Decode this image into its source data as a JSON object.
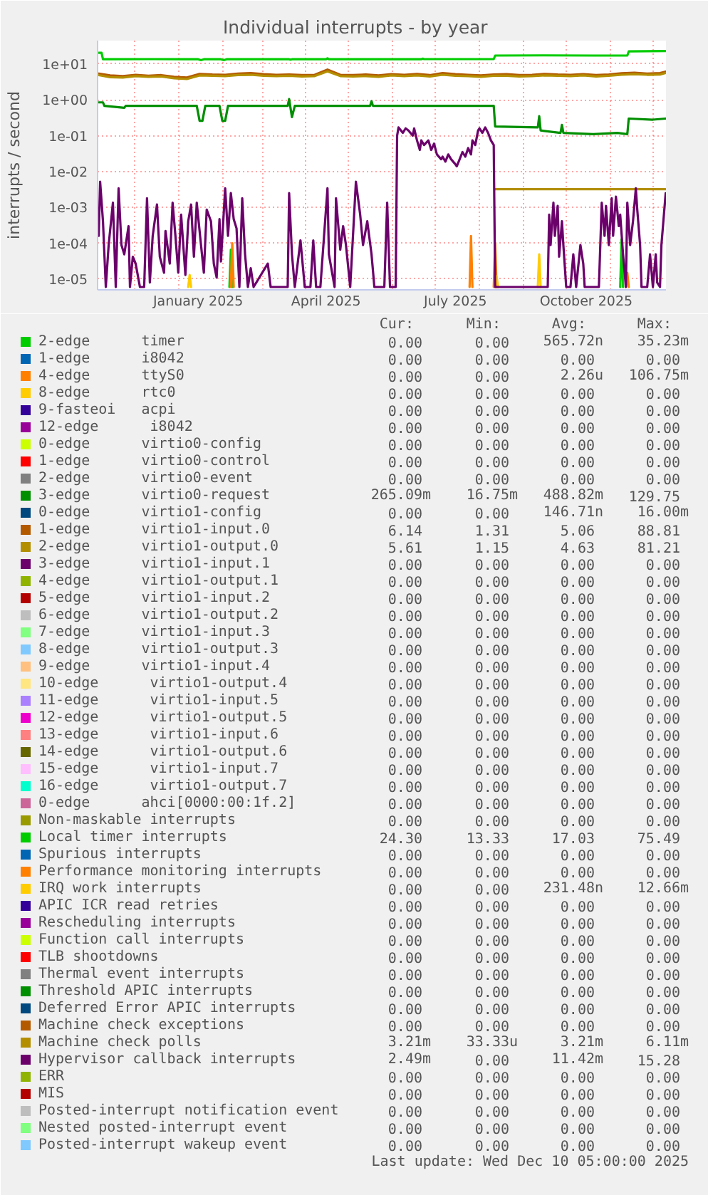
{
  "chart_data": {
    "type": "line",
    "title": "Individual interrupts - by year",
    "ylabel": "interrupts / second",
    "log": "y",
    "grid": true,
    "legend": "bottom",
    "xlim": [
      "2024-11-05T05:00",
      "2025-12-10T05:00"
    ],
    "xticks": [
      {
        "value": "2024-12-01",
        "label": null
      },
      {
        "value": "2025-01-01",
        "label": null
      },
      {
        "value": "2025-01-15",
        "label": "January 2025"
      },
      {
        "value": "2025-02-01",
        "label": null
      },
      {
        "value": "2025-03-01",
        "label": null
      },
      {
        "value": "2025-04-01",
        "label": null
      },
      {
        "value": "2025-04-15",
        "label": "April 2025"
      },
      {
        "value": "2025-05-01",
        "label": null
      },
      {
        "value": "2025-06-01",
        "label": null
      },
      {
        "value": "2025-07-01",
        "label": null
      },
      {
        "value": "2025-07-15",
        "label": "July 2025"
      },
      {
        "value": "2025-08-01",
        "label": null
      },
      {
        "value": "2025-09-01",
        "label": null
      },
      {
        "value": "2025-10-01",
        "label": null
      },
      {
        "value": "2025-10-15",
        "label": "October 2025"
      },
      {
        "value": "2025-11-01",
        "label": null
      },
      {
        "value": "2025-12-01",
        "label": null
      }
    ],
    "ylim": [
      5e-06,
      45
    ],
    "yticks": [
      {
        "value": 1e-05,
        "label": "1e-05"
      },
      {
        "value": 0.0001,
        "label": "1e-04"
      },
      {
        "value": 0.001,
        "label": "1e-03"
      },
      {
        "value": 0.01,
        "label": "1e-02"
      },
      {
        "value": 0.1,
        "label": "1e-01"
      },
      {
        "value": 1,
        "label": "1e+00"
      },
      {
        "value": 10,
        "label": "1e+01"
      }
    ],
    "series": [
      {
        "name": "2-edge      timer",
        "color": "#00cc00",
        "x": [
          "2025-02-06",
          "2025-02-07",
          "2025-02-08",
          "2025-02-09",
          "2025-11-08",
          "2025-11-09",
          "2025-11-10"
        ],
        "values": [
          6e-06,
          6.6e-05,
          6e-06,
          null,
          6e-06,
          0.00013,
          6e-06
        ]
      },
      {
        "name": "1-edge      i8042",
        "color": "#0066b3"
      },
      {
        "name": "4-edge      ttyS0",
        "color": "#ff8000",
        "x": [
          "2025-02-07",
          "2025-02-08",
          "2025-02-09",
          "2025-02-10",
          "2025-07-25",
          "2025-07-26",
          "2025-07-27",
          "2025-07-28",
          "2025-08-11",
          "2025-08-12",
          "2025-08-13",
          "2025-08-14",
          "2025-11-12",
          "2025-11-13",
          "2025-11-14"
        ],
        "values": [
          6e-06,
          0.0001,
          6e-06,
          null,
          6e-06,
          0.00016,
          6e-06,
          null,
          6e-06,
          0.0001,
          6e-06,
          null,
          6e-06,
          1.5e-05,
          6e-06
        ]
      },
      {
        "name": "8-edge      rtc0",
        "color": "#ffcc00"
      },
      {
        "name": "9-fasteoi   acpi",
        "color": "#330099"
      },
      {
        "name": "12-edge      i8042",
        "color": "#990099"
      },
      {
        "name": "0-edge      virtio0-config",
        "color": "#ccff00"
      },
      {
        "name": "1-edge      virtio0-control",
        "color": "#ff0000"
      },
      {
        "name": "2-edge      virtio0-event",
        "color": "#808080"
      },
      {
        "name": "3-edge      virtio0-request",
        "color": "#008f00",
        "x": [
          "2024-11-06",
          "2024-11-09",
          "2024-11-10",
          "2024-11-24",
          "2024-11-25",
          "2025-01-14",
          "2025-01-16",
          "2025-01-18",
          "2025-01-20",
          "2025-01-30",
          "2025-02-01",
          "2025-02-03",
          "2025-02-05",
          "2025-03-19",
          "2025-03-20",
          "2025-03-22",
          "2025-03-24",
          "2025-05-16",
          "2025-05-17",
          "2025-05-18",
          "2025-08-11",
          "2025-08-12",
          "2025-09-11",
          "2025-09-12",
          "2025-09-13",
          "2025-09-27",
          "2025-09-28",
          "2025-09-29",
          "2025-10-20",
          "2025-11-06",
          "2025-11-13",
          "2025-11-14",
          "2025-12-01",
          "2025-12-10"
        ],
        "values": [
          0.85,
          0.85,
          0.68,
          0.6,
          0.68,
          0.68,
          0.26,
          0.26,
          0.68,
          0.68,
          0.26,
          0.26,
          0.68,
          0.68,
          1.05,
          0.33,
          0.68,
          0.68,
          0.92,
          0.68,
          0.68,
          0.18,
          0.17,
          0.35,
          0.14,
          0.12,
          0.2,
          0.12,
          0.11,
          0.12,
          0.11,
          0.3,
          0.28,
          0.3
        ]
      },
      {
        "name": "0-edge      virtio1-config",
        "color": "#00487d"
      },
      {
        "name": "1-edge      virtio1-input.0",
        "color": "#b35a00",
        "x": [
          "2024-11-06",
          "2024-11-14",
          "2024-11-23",
          "2024-12-02",
          "2024-12-11",
          "2024-12-20",
          "2024-12-29",
          "2025-01-07",
          "2025-01-16",
          "2025-01-25",
          "2025-02-03",
          "2025-02-12",
          "2025-02-21",
          "2025-03-02",
          "2025-03-11",
          "2025-03-20",
          "2025-03-29",
          "2025-04-07",
          "2025-04-16",
          "2025-04-25",
          "2025-05-04",
          "2025-05-13",
          "2025-05-22",
          "2025-05-31",
          "2025-06-09",
          "2025-06-18",
          "2025-06-27",
          "2025-07-06",
          "2025-07-15",
          "2025-07-24",
          "2025-08-02",
          "2025-08-11",
          "2025-08-20",
          "2025-08-29",
          "2025-09-07",
          "2025-09-16",
          "2025-09-25",
          "2025-10-04",
          "2025-10-13",
          "2025-10-22",
          "2025-10-31",
          "2025-11-09",
          "2025-11-18",
          "2025-11-27",
          "2025-12-06",
          "2025-12-10"
        ],
        "values": [
          5.4,
          4.8,
          4.6,
          5.0,
          4.7,
          4.9,
          4.4,
          4.2,
          5.3,
          5.1,
          5.0,
          5.4,
          5.6,
          5.2,
          5.0,
          5.1,
          4.9,
          5.0,
          7.0,
          5.0,
          4.9,
          5.1,
          4.8,
          5.2,
          5.0,
          5.3,
          4.9,
          5.6,
          5.2,
          5.0,
          4.8,
          5.1,
          5.2,
          4.9,
          5.0,
          5.3,
          5.1,
          5.0,
          5.2,
          4.9,
          5.1,
          5.5,
          5.7,
          5.4,
          5.6,
          6.1
        ]
      },
      {
        "name": "2-edge      virtio1-output.0",
        "color": "#b38f00",
        "x": [
          "2024-11-06",
          "2024-11-14",
          "2024-11-23",
          "2024-12-02",
          "2024-12-11",
          "2024-12-20",
          "2024-12-29",
          "2025-01-07",
          "2025-01-16",
          "2025-01-25",
          "2025-02-03",
          "2025-02-12",
          "2025-02-21",
          "2025-03-02",
          "2025-03-11",
          "2025-03-20",
          "2025-03-29",
          "2025-04-07",
          "2025-04-16",
          "2025-04-25",
          "2025-05-04",
          "2025-05-13",
          "2025-05-22",
          "2025-05-31",
          "2025-06-09",
          "2025-06-18",
          "2025-06-27",
          "2025-07-06",
          "2025-07-15",
          "2025-07-24",
          "2025-08-02",
          "2025-08-11",
          "2025-08-20",
          "2025-08-29",
          "2025-09-07",
          "2025-09-16",
          "2025-09-25",
          "2025-10-04",
          "2025-10-13",
          "2025-10-22",
          "2025-10-31",
          "2025-11-09",
          "2025-11-18",
          "2025-11-27",
          "2025-12-06",
          "2025-12-10"
        ],
        "values": [
          4.9,
          4.3,
          4.2,
          4.6,
          4.4,
          4.5,
          4.0,
          3.8,
          4.8,
          4.7,
          4.6,
          4.9,
          5.0,
          4.7,
          4.6,
          4.7,
          4.5,
          4.6,
          6.2,
          4.6,
          4.5,
          4.6,
          4.4,
          4.8,
          4.6,
          4.8,
          4.5,
          5.0,
          4.7,
          4.6,
          4.4,
          4.7,
          4.7,
          4.5,
          4.6,
          4.8,
          4.7,
          4.6,
          4.8,
          4.5,
          4.7,
          5.0,
          5.2,
          5.0,
          5.1,
          5.6
        ]
      },
      {
        "name": "3-edge      virtio1-input.1",
        "color": "#6b006b"
      },
      {
        "name": "4-edge      virtio1-output.1",
        "color": "#8fb300"
      },
      {
        "name": "5-edge      virtio1-input.2",
        "color": "#b30000"
      },
      {
        "name": "6-edge      virtio1-output.2",
        "color": "#bebebe"
      },
      {
        "name": "7-edge      virtio1-input.3",
        "color": "#80ff80"
      },
      {
        "name": "8-edge      virtio1-output.3",
        "color": "#80c9ff"
      },
      {
        "name": "9-edge      virtio1-input.4",
        "color": "#ffc080"
      },
      {
        "name": "10-edge      virtio1-output.4",
        "color": "#ffe680"
      },
      {
        "name": "11-edge      virtio1-input.5",
        "color": "#aa80ff"
      },
      {
        "name": "12-edge      virtio1-output.5",
        "color": "#ee00cc"
      },
      {
        "name": "13-edge      virtio1-input.6",
        "color": "#ff8080"
      },
      {
        "name": "14-edge      virtio1-output.6",
        "color": "#666600"
      },
      {
        "name": "15-edge      virtio1-input.7",
        "color": "#ffbfff"
      },
      {
        "name": "16-edge      virtio1-output.7",
        "color": "#00ffcc"
      },
      {
        "name": "0-edge      ahci[0000:00:1f.2]",
        "color": "#cc6699"
      },
      {
        "name": "Non-maskable interrupts",
        "color": "#999900"
      },
      {
        "name": "Local timer interrupts",
        "color": "#00cc00",
        "x": [
          "2024-11-06",
          "2024-11-08",
          "2024-11-09",
          "2024-12-15",
          "2025-01-15",
          "2025-01-17",
          "2025-01-19",
          "2025-01-31",
          "2025-02-02",
          "2025-02-04",
          "2025-03-20",
          "2025-03-21",
          "2025-03-22",
          "2025-04-15",
          "2025-04-16",
          "2025-04-17",
          "2025-06-21",
          "2025-06-22",
          "2025-06-23",
          "2025-08-11",
          "2025-08-12",
          "2025-09-15",
          "2025-10-20",
          "2025-11-13",
          "2025-11-14",
          "2025-12-10"
        ],
        "values": [
          20.5,
          20.5,
          13.6,
          13.7,
          13.6,
          12.8,
          13.6,
          13.6,
          12.8,
          13.6,
          13.6,
          13.2,
          13.6,
          13.6,
          14.4,
          13.6,
          13.6,
          14.1,
          13.7,
          13.7,
          17.2,
          17.4,
          17.2,
          17.2,
          22.5,
          23.0
        ]
      },
      {
        "name": "Spurious interrupts",
        "color": "#0066b3"
      },
      {
        "name": "Performance monitoring interrupts",
        "color": "#ff8000"
      },
      {
        "name": "IRQ work interrupts",
        "color": "#ffcc00",
        "x": [
          "2025-01-08",
          "2025-01-09",
          "2025-01-10",
          "2025-01-11",
          "2025-08-12",
          "2025-08-13",
          "2025-08-14",
          "2025-08-15",
          "2025-09-11",
          "2025-09-12",
          "2025-09-13"
        ],
        "values": [
          6e-06,
          1.3e-05,
          6e-06,
          null,
          6e-06,
          1.2e-05,
          6e-06,
          null,
          6e-06,
          4.9e-05,
          6e-06
        ]
      },
      {
        "name": "APIC ICR read retries",
        "color": "#330099"
      },
      {
        "name": "Rescheduling interrupts",
        "color": "#990099"
      },
      {
        "name": "Function call interrupts",
        "color": "#ccff00"
      },
      {
        "name": "TLB shootdowns",
        "color": "#ff0000"
      },
      {
        "name": "Thermal event interrupts",
        "color": "#808080"
      },
      {
        "name": "Threshold APIC interrupts",
        "color": "#008f00"
      },
      {
        "name": "Deferred Error APIC interrupts",
        "color": "#00487d"
      },
      {
        "name": "Machine check exceptions",
        "color": "#b35a00"
      },
      {
        "name": "Machine check polls",
        "color": "#b38f00",
        "x": [
          "2025-08-12",
          "2025-12-10"
        ],
        "values": [
          0.00321,
          0.00321
        ]
      },
      {
        "name": "Hypervisor callback interrupts",
        "color": "#6b006b",
        "x": [
          "2024-11-06",
          "2024-11-07",
          "2024-11-09",
          "2024-11-11",
          "2024-11-13",
          "2024-11-16",
          "2024-11-18",
          "2024-11-20",
          "2024-11-22",
          "2024-11-24",
          "2024-11-27",
          "2024-11-28",
          "2024-11-30",
          "2024-12-02",
          "2024-12-05",
          "2024-12-08",
          "2024-12-10",
          "2024-12-12",
          "2024-12-14",
          "2024-12-17",
          "2024-12-19",
          "2024-12-22",
          "2024-12-23",
          "2024-12-26",
          "2024-12-28",
          "2024-12-30",
          "2025-01-01",
          "2025-01-03",
          "2025-01-06",
          "2025-01-08",
          "2025-01-10",
          "2025-01-12",
          "2025-01-14",
          "2025-01-17",
          "2025-01-19",
          "2025-01-21",
          "2025-01-24",
          "2025-01-26",
          "2025-01-28",
          "2025-01-30",
          "2025-01-31",
          "2025-02-03",
          "2025-02-05",
          "2025-02-07",
          "2025-02-09",
          "2025-02-11",
          "2025-02-13",
          "2025-02-15",
          "2025-02-17",
          "2025-02-19",
          "2025-02-21",
          "2025-02-23",
          "2025-03-05",
          "2025-03-07",
          "2025-03-19",
          "2025-03-20",
          "2025-03-22",
          "2025-03-24",
          "2025-03-28",
          "2025-03-31",
          "2025-04-04",
          "2025-04-06",
          "2025-04-08",
          "2025-04-11",
          "2025-04-16",
          "2025-04-17",
          "2025-04-21",
          "2025-04-22",
          "2025-04-25",
          "2025-04-27",
          "2025-04-29",
          "2025-05-02",
          "2025-05-06",
          "2025-05-09",
          "2025-05-11",
          "2025-05-14",
          "2025-05-17",
          "2025-05-19",
          "2025-05-26",
          "2025-05-28",
          "2025-05-30",
          "2025-06-03",
          "2025-06-04",
          "2025-06-05",
          "2025-06-08",
          "2025-06-10",
          "2025-06-12",
          "2025-06-15",
          "2025-06-16",
          "2025-06-18",
          "2025-06-20",
          "2025-06-21",
          "2025-06-23",
          "2025-06-26",
          "2025-06-28",
          "2025-06-30",
          "2025-07-02",
          "2025-07-05",
          "2025-07-06",
          "2025-07-08",
          "2025-07-10",
          "2025-07-12",
          "2025-07-15",
          "2025-07-16",
          "2025-07-18",
          "2025-07-20",
          "2025-07-22",
          "2025-07-24",
          "2025-07-26",
          "2025-07-27",
          "2025-07-29",
          "2025-07-31",
          "2025-08-01",
          "2025-08-03",
          "2025-08-05",
          "2025-08-07",
          "2025-08-09",
          "2025-08-11",
          "2025-08-12",
          "2025-09-18",
          "2025-09-19",
          "2025-09-20",
          "2025-09-22",
          "2025-09-23",
          "2025-09-25",
          "2025-09-26",
          "2025-09-28",
          "2025-09-29",
          "2025-10-01",
          "2025-10-04",
          "2025-10-06",
          "2025-10-08",
          "2025-10-11",
          "2025-10-13",
          "2025-10-14",
          "2025-10-24",
          "2025-10-26",
          "2025-10-28",
          "2025-10-29",
          "2025-10-31",
          "2025-11-02",
          "2025-11-03",
          "2025-11-05",
          "2025-11-07",
          "2025-11-08",
          "2025-11-10",
          "2025-11-12",
          "2025-11-13",
          "2025-11-15",
          "2025-11-17",
          "2025-11-19",
          "2025-11-20",
          "2025-11-22",
          "2025-11-23",
          "2025-11-27",
          "2025-11-29",
          "2025-12-01",
          "2025-12-03",
          "2025-12-04",
          "2025-12-06",
          "2025-12-07",
          "2025-12-10"
        ],
        "values": [
          0.00016,
          0.0052,
          0.00041,
          6e-06,
          8.9e-05,
          0.00135,
          6e-06,
          0.0034,
          8.9e-05,
          4.9e-05,
          0.0003,
          6e-06,
          4.2e-05,
          2.7e-05,
          6e-06,
          6e-06,
          0.0018,
          8e-06,
          0.00016,
          0.0012,
          4.2e-05,
          1.5e-05,
          0.00022,
          2.7e-05,
          0.00135,
          0.00016,
          1.5e-05,
          0.00063,
          1.3e-05,
          0.00041,
          0.0012,
          4.2e-05,
          0.00135,
          8.9e-05,
          1.5e-05,
          0.00087,
          0.00041,
          2.7e-05,
          1.1e-05,
          0.00047,
          3.1e-05,
          0.0034,
          0.00016,
          0.0025,
          0.00047,
          0.00026,
          6e-06,
          0.0018,
          4.9e-05,
          6e-06,
          2e-05,
          6e-06,
          2.7e-05,
          6e-06,
          6e-06,
          0.0025,
          4.9e-05,
          6e-06,
          0.00012,
          6e-06,
          6e-06,
          0.00012,
          6e-06,
          6e-06,
          0.0034,
          4.9e-05,
          6e-06,
          0.0018,
          6.6e-05,
          0.0003,
          8.9e-05,
          6e-06,
          0.0052,
          0.00063,
          8.9e-05,
          0.00041,
          4.9e-05,
          6e-06,
          6e-06,
          0.00135,
          6e-06,
          6e-06,
          0.1,
          0.17,
          0.12,
          0.16,
          0.14,
          0.1,
          0.16,
          0.074,
          0.04,
          0.074,
          0.055,
          0.074,
          0.04,
          0.06,
          0.03,
          0.022,
          0.026,
          0.019,
          0.03,
          0.022,
          0.016,
          0.014,
          0.022,
          0.035,
          0.026,
          0.045,
          0.03,
          0.074,
          0.055,
          0.14,
          0.16,
          0.12,
          0.17,
          0.12,
          0.074,
          0.055,
          6e-06,
          6e-06,
          0.00063,
          8.9e-05,
          0.00135,
          0.00016,
          0.0011,
          4.2e-05,
          0.00041,
          8.9e-05,
          6e-06,
          6e-06,
          4.9e-05,
          6e-06,
          8.9e-05,
          2.7e-05,
          6e-06,
          6e-06,
          0.00135,
          0.00016,
          0.0011,
          8.9e-05,
          0.0018,
          0.00016,
          0.002,
          0.0003,
          0.00063,
          4.9e-05,
          6e-06,
          0.00135,
          8.9e-05,
          0.00041,
          0.0034,
          0.00087,
          8.9e-05,
          6e-06,
          6e-06,
          4.9e-05,
          6e-06,
          4.9e-05,
          8e-06,
          6e-06,
          8.9e-05,
          0.00249
        ]
      },
      {
        "name": "ERR",
        "color": "#8fb300"
      },
      {
        "name": "MIS",
        "color": "#b30000"
      },
      {
        "name": "Posted-interrupt notification event",
        "color": "#bebebe"
      },
      {
        "name": "Nested posted-interrupt event",
        "color": "#80ff80"
      },
      {
        "name": "Posted-interrupt wakeup event",
        "color": "#80c9ff"
      }
    ],
    "annotations": [
      "Cur:",
      "Min:",
      "Avg:",
      "Max:",
      "0.00",
      "0.00",
      "565.72n",
      "35.23m",
      "0.00",
      "0.00",
      "0.00",
      "0.00",
      "0.00",
      "0.00",
      "2.26u",
      "106.75m",
      "0.00",
      "0.00",
      "0.00",
      "0.00",
      "0.00",
      "0.00",
      "0.00",
      "0.00",
      "0.00",
      "0.00",
      "0.00",
      "0.00",
      "0.00",
      "0.00",
      "0.00",
      "0.00",
      "0.00",
      "0.00",
      "0.00",
      "0.00",
      "0.00",
      "0.00",
      "0.00",
      "0.00",
      "265.09m",
      "16.75m",
      "488.82m",
      "129.75",
      "0.00",
      "0.00",
      "146.71n",
      "16.00m",
      "6.14",
      "1.31",
      "5.06",
      "88.81",
      "5.61",
      "1.15",
      "4.63",
      "81.21",
      "0.00",
      "0.00",
      "0.00",
      "0.00",
      "0.00",
      "0.00",
      "0.00",
      "0.00",
      "0.00",
      "0.00",
      "0.00",
      "0.00",
      "0.00",
      "0.00",
      "0.00",
      "0.00",
      "0.00",
      "0.00",
      "0.00",
      "0.00",
      "0.00",
      "0.00",
      "0.00",
      "0.00",
      "0.00",
      "0.00",
      "0.00",
      "0.00",
      "0.00",
      "0.00",
      "0.00",
      "0.00",
      "0.00",
      "0.00",
      "0.00",
      "0.00",
      "0.00",
      "0.00",
      "0.00",
      "0.00",
      "0.00",
      "0.00",
      "0.00",
      "0.00",
      "0.00",
      "0.00",
      "0.00",
      "0.00",
      "0.00",
      "0.00",
      "0.00",
      "0.00",
      "0.00",
      "0.00",
      "0.00",
      "0.00",
      "0.00",
      "0.00",
      "0.00",
      "0.00",
      "0.00",
      "0.00",
      "0.00",
      "0.00",
      "24.30",
      "13.33",
      "17.03",
      "75.49",
      "0.00",
      "0.00",
      "0.00",
      "0.00",
      "0.00",
      "0.00",
      "0.00",
      "0.00",
      "0.00",
      "0.00",
      "231.48n",
      "12.66m",
      "0.00",
      "0.00",
      "0.00",
      "0.00",
      "0.00",
      "0.00",
      "0.00",
      "0.00",
      "0.00",
      "0.00",
      "0.00",
      "0.00",
      "0.00",
      "0.00",
      "0.00",
      "0.00",
      "0.00",
      "0.00",
      "0.00",
      "0.00",
      "0.00",
      "0.00",
      "0.00",
      "0.00",
      "0.00",
      "0.00",
      "0.00",
      "0.00",
      "0.00",
      "0.00",
      "0.00",
      "0.00",
      "3.21m",
      "33.33u",
      "3.21m",
      "6.11m",
      "2.49m",
      "0.00",
      "11.42m",
      "15.28",
      "0.00",
      "0.00",
      "0.00",
      "0.00",
      "0.00",
      "0.00",
      "0.00",
      "0.00",
      "0.00",
      "0.00",
      "0.00",
      "0.00",
      "0.00",
      "0.00",
      "0.00",
      "0.00",
      "0.00",
      "0.00",
      "0.00",
      "0.00",
      "Last update: Wed Dec 10 05:00:00 2025"
    ]
  }
}
